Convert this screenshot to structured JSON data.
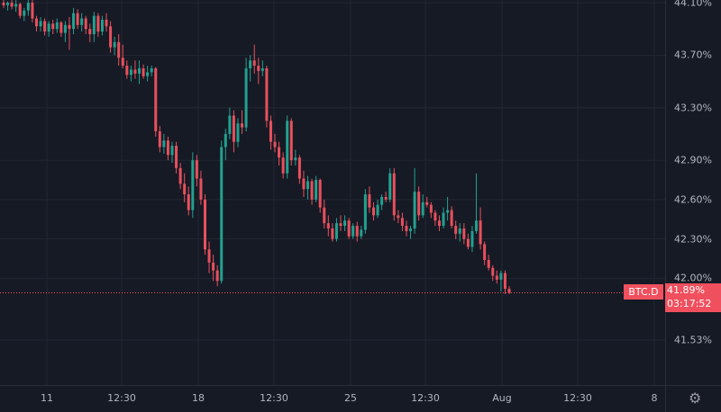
{
  "chart_data": {
    "type": "candlestick",
    "symbol": "BTC.D",
    "last_price": "41.89%",
    "countdown": "03:17:52",
    "y_scale": "percent",
    "ylim": [
      41.53,
      44.1
    ],
    "y_ticks": [
      "44.10%",
      "43.70%",
      "43.30%",
      "42.90%",
      "42.60%",
      "42.30%",
      "42.00%",
      "41.53%"
    ],
    "y_tick_values": [
      44.1,
      43.7,
      43.3,
      42.9,
      42.6,
      42.3,
      42.0,
      41.53
    ],
    "x_ticks": [
      "11",
      "12:30",
      "18",
      "12:30",
      "25",
      "12:30",
      "Aug",
      "12:30",
      "8"
    ],
    "grid": true,
    "colors": {
      "up": "#22a08f",
      "down": "#e8505c",
      "background": "#161a25",
      "grid": "#232733",
      "price_line": "#f0505e"
    },
    "candles_ohlc": [
      [
        44.1,
        44.13,
        44.06,
        44.08
      ],
      [
        44.08,
        44.11,
        44.04,
        44.1
      ],
      [
        44.1,
        44.12,
        44.05,
        44.07
      ],
      [
        44.07,
        44.12,
        44.03,
        44.09
      ],
      [
        44.09,
        44.1,
        43.98,
        44.0
      ],
      [
        44.0,
        44.06,
        43.96,
        44.04
      ],
      [
        44.04,
        44.12,
        44.0,
        44.1
      ],
      [
        44.1,
        44.12,
        43.95,
        43.98
      ],
      [
        43.98,
        44.0,
        43.88,
        43.92
      ],
      [
        43.92,
        43.99,
        43.88,
        43.96
      ],
      [
        43.96,
        43.98,
        43.85,
        43.88
      ],
      [
        43.88,
        43.96,
        43.84,
        43.94
      ],
      [
        43.94,
        43.97,
        43.86,
        43.9
      ],
      [
        43.9,
        43.98,
        43.87,
        43.95
      ],
      [
        43.95,
        43.96,
        43.84,
        43.87
      ],
      [
        43.87,
        43.96,
        43.8,
        43.93
      ],
      [
        43.93,
        43.99,
        43.74,
        43.9
      ],
      [
        43.9,
        44.06,
        43.86,
        44.02
      ],
      [
        44.02,
        44.05,
        43.9,
        43.93
      ],
      [
        43.93,
        44.02,
        43.88,
        43.98
      ],
      [
        43.98,
        44.0,
        43.86,
        43.9
      ],
      [
        43.9,
        43.94,
        43.8,
        43.86
      ],
      [
        43.86,
        44.03,
        43.8,
        44.0
      ],
      [
        44.0,
        44.02,
        43.84,
        43.88
      ],
      [
        43.88,
        44.0,
        43.85,
        43.97
      ],
      [
        43.97,
        44.02,
        43.88,
        43.92
      ],
      [
        43.92,
        43.96,
        43.72,
        43.76
      ],
      [
        43.76,
        43.84,
        43.7,
        43.8
      ],
      [
        43.8,
        43.86,
        43.62,
        43.68
      ],
      [
        43.68,
        43.78,
        43.6,
        43.62
      ],
      [
        43.62,
        43.66,
        43.52,
        43.55
      ],
      [
        43.55,
        43.62,
        43.5,
        43.59
      ],
      [
        43.59,
        43.66,
        43.52,
        43.56
      ],
      [
        43.56,
        43.66,
        43.48,
        43.6
      ],
      [
        43.6,
        43.63,
        43.52,
        43.54
      ],
      [
        43.54,
        43.62,
        43.5,
        43.57
      ],
      [
        43.57,
        43.62,
        43.54,
        43.6
      ],
      [
        43.6,
        43.61,
        43.08,
        43.12
      ],
      [
        43.12,
        43.16,
        42.96,
        43.0
      ],
      [
        43.0,
        43.1,
        42.95,
        43.05
      ],
      [
        43.05,
        43.08,
        42.9,
        42.94
      ],
      [
        42.94,
        43.04,
        42.88,
        43.01
      ],
      [
        43.01,
        43.04,
        42.8,
        42.84
      ],
      [
        42.84,
        42.88,
        42.68,
        42.72
      ],
      [
        42.72,
        42.8,
        42.58,
        42.64
      ],
      [
        42.64,
        42.7,
        42.48,
        42.52
      ],
      [
        42.52,
        42.96,
        42.46,
        42.9
      ],
      [
        42.9,
        42.94,
        42.7,
        42.76
      ],
      [
        42.76,
        42.82,
        42.56,
        42.6
      ],
      [
        42.6,
        42.64,
        42.18,
        42.22
      ],
      [
        42.22,
        42.28,
        42.04,
        42.12
      ],
      [
        42.12,
        42.18,
        41.98,
        42.06
      ],
      [
        42.06,
        42.1,
        41.94,
        41.98
      ],
      [
        41.98,
        43.05,
        41.96,
        43.0
      ],
      [
        43.0,
        43.14,
        42.9,
        43.1
      ],
      [
        43.1,
        43.3,
        43.06,
        43.24
      ],
      [
        43.24,
        43.28,
        42.96,
        43.04
      ],
      [
        43.04,
        43.22,
        43.0,
        43.18
      ],
      [
        43.18,
        43.28,
        43.1,
        43.15
      ],
      [
        43.15,
        43.68,
        43.12,
        43.6
      ],
      [
        43.6,
        43.7,
        43.5,
        43.66
      ],
      [
        43.66,
        43.78,
        43.56,
        43.62
      ],
      [
        43.62,
        43.68,
        43.48,
        43.58
      ],
      [
        43.58,
        43.66,
        43.54,
        43.6
      ],
      [
        43.6,
        43.62,
        43.15,
        43.2
      ],
      [
        43.2,
        43.24,
        42.98,
        43.04
      ],
      [
        43.04,
        43.1,
        42.96,
        43.0
      ],
      [
        43.0,
        43.04,
        42.86,
        42.92
      ],
      [
        42.92,
        42.96,
        42.76,
        42.8
      ],
      [
        42.8,
        43.24,
        42.76,
        43.2
      ],
      [
        43.2,
        43.22,
        42.86,
        42.9
      ],
      [
        42.9,
        42.98,
        42.86,
        42.92
      ],
      [
        42.92,
        42.94,
        42.72,
        42.76
      ],
      [
        42.76,
        42.82,
        42.62,
        42.68
      ],
      [
        42.68,
        42.78,
        42.6,
        42.74
      ],
      [
        42.74,
        42.76,
        42.56,
        42.6
      ],
      [
        42.6,
        42.78,
        42.58,
        42.75
      ],
      [
        42.75,
        42.76,
        42.5,
        42.54
      ],
      [
        42.54,
        42.6,
        42.38,
        42.42
      ],
      [
        42.42,
        42.48,
        42.32,
        42.38
      ],
      [
        42.38,
        42.42,
        42.28,
        42.3
      ],
      [
        42.3,
        42.46,
        42.28,
        42.42
      ],
      [
        42.42,
        42.48,
        42.36,
        42.4
      ],
      [
        42.4,
        42.48,
        42.36,
        42.44
      ],
      [
        42.44,
        42.46,
        42.3,
        42.32
      ],
      [
        42.32,
        42.42,
        42.3,
        42.4
      ],
      [
        42.4,
        42.43,
        42.28,
        42.32
      ],
      [
        42.32,
        42.4,
        42.3,
        42.37
      ],
      [
        42.37,
        42.68,
        42.34,
        42.64
      ],
      [
        42.64,
        42.7,
        42.5,
        42.54
      ],
      [
        42.54,
        42.58,
        42.44,
        42.48
      ],
      [
        42.48,
        42.6,
        42.46,
        42.56
      ],
      [
        42.56,
        42.64,
        42.52,
        42.62
      ],
      [
        42.62,
        42.66,
        42.58,
        42.6
      ],
      [
        42.6,
        42.84,
        42.58,
        42.8
      ],
      [
        42.8,
        42.84,
        42.44,
        42.48
      ],
      [
        42.48,
        42.52,
        42.42,
        42.46
      ],
      [
        42.46,
        42.5,
        42.36,
        42.4
      ],
      [
        42.4,
        42.44,
        42.32,
        42.36
      ],
      [
        42.36,
        42.4,
        42.3,
        42.38
      ],
      [
        42.38,
        42.84,
        42.34,
        42.66
      ],
      [
        42.66,
        42.7,
        42.44,
        42.48
      ],
      [
        42.48,
        42.64,
        42.46,
        42.58
      ],
      [
        42.58,
        42.62,
        42.54,
        42.56
      ],
      [
        42.56,
        42.58,
        42.46,
        42.5
      ],
      [
        42.5,
        42.52,
        42.4,
        42.44
      ],
      [
        42.44,
        42.48,
        42.36,
        42.4
      ],
      [
        42.4,
        42.54,
        42.38,
        42.5
      ],
      [
        42.5,
        42.62,
        42.44,
        42.52
      ],
      [
        42.52,
        42.55,
        42.38,
        42.4
      ],
      [
        42.4,
        42.44,
        42.3,
        42.34
      ],
      [
        42.34,
        42.42,
        42.28,
        42.38
      ],
      [
        42.38,
        42.42,
        42.26,
        42.3
      ],
      [
        42.3,
        42.34,
        42.22,
        42.24
      ],
      [
        42.24,
        42.4,
        42.2,
        42.36
      ],
      [
        42.36,
        42.8,
        42.34,
        42.44
      ],
      [
        42.44,
        42.54,
        42.22,
        42.26
      ],
      [
        42.26,
        42.28,
        42.1,
        42.14
      ],
      [
        42.14,
        42.18,
        42.06,
        42.08
      ],
      [
        42.08,
        42.1,
        41.98,
        42.02
      ],
      [
        42.02,
        42.06,
        41.96,
        41.99
      ],
      [
        41.99,
        42.06,
        41.9,
        42.04
      ],
      [
        42.04,
        42.06,
        41.88,
        41.92
      ],
      [
        41.92,
        41.94,
        41.88,
        41.89
      ]
    ]
  },
  "settings_icon": "gear-icon"
}
